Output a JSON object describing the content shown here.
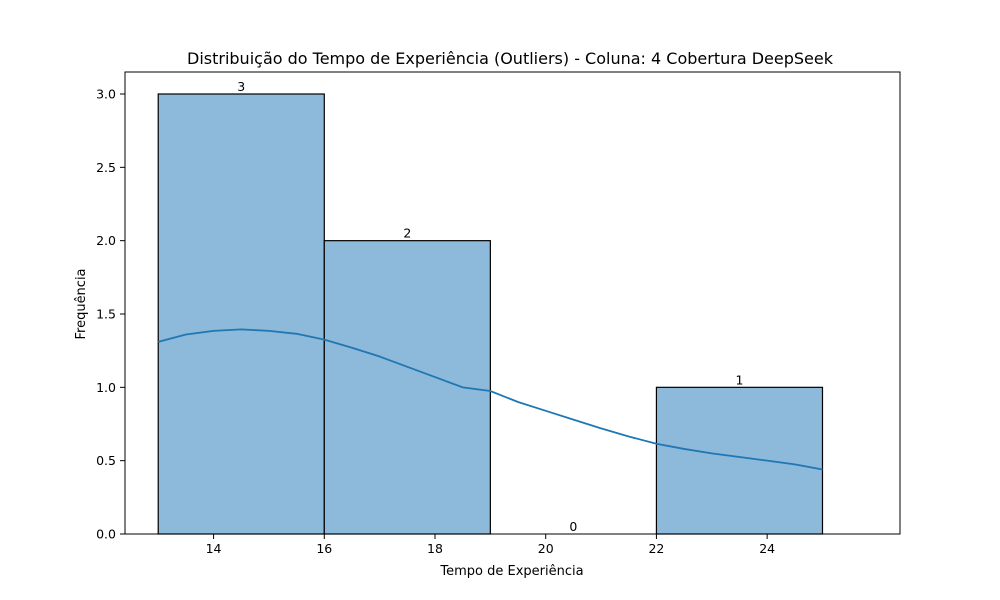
{
  "chart_data": {
    "type": "bar",
    "title": "Distribuição do Tempo de Experiência (Outliers) - Coluna: 4 Cobertura DeepSeek",
    "xlabel": "Tempo de Experiência",
    "ylabel": "Frequência",
    "xlim": [
      12.4,
      26.4
    ],
    "ylim": [
      0,
      3.15
    ],
    "x_ticks": [
      14,
      16,
      18,
      20,
      22,
      24
    ],
    "x_tick_labels": [
      "14",
      "16",
      "18",
      "20",
      "22",
      "24"
    ],
    "y_ticks": [
      0,
      0.5,
      1,
      1.5,
      2,
      2.5,
      3
    ],
    "y_tick_labels": [
      "0.0",
      "0.5",
      "1.0",
      "1.5",
      "2.0",
      "2.5",
      "3.0"
    ],
    "bins": [
      {
        "start": 13,
        "end": 16,
        "count": 3,
        "label": "3"
      },
      {
        "start": 16,
        "end": 19,
        "count": 2,
        "label": "2"
      },
      {
        "start": 19,
        "end": 22,
        "count": 0,
        "label": "0"
      },
      {
        "start": 22,
        "end": 25,
        "count": 1,
        "label": "1"
      }
    ],
    "kde_curve": {
      "x": [
        13,
        13.5,
        14,
        14.5,
        15,
        15.5,
        16,
        16.5,
        17,
        17.5,
        18,
        18.5,
        19,
        19.5,
        20,
        20.5,
        21,
        21.5,
        22,
        22.5,
        23,
        23.5,
        24,
        24.5,
        25
      ],
      "y": [
        1.31,
        1.36,
        1.385,
        1.395,
        1.385,
        1.365,
        1.325,
        1.27,
        1.21,
        1.14,
        1.07,
        1.0,
        0.975,
        0.9,
        0.84,
        0.78,
        0.72,
        0.665,
        0.615,
        0.58,
        0.55,
        0.525,
        0.5,
        0.475,
        0.44
      ]
    },
    "grid": false,
    "colors": {
      "bar_fill": "#8db9da",
      "bar_edge": "#000000",
      "kde_line": "#1f77b4"
    }
  }
}
